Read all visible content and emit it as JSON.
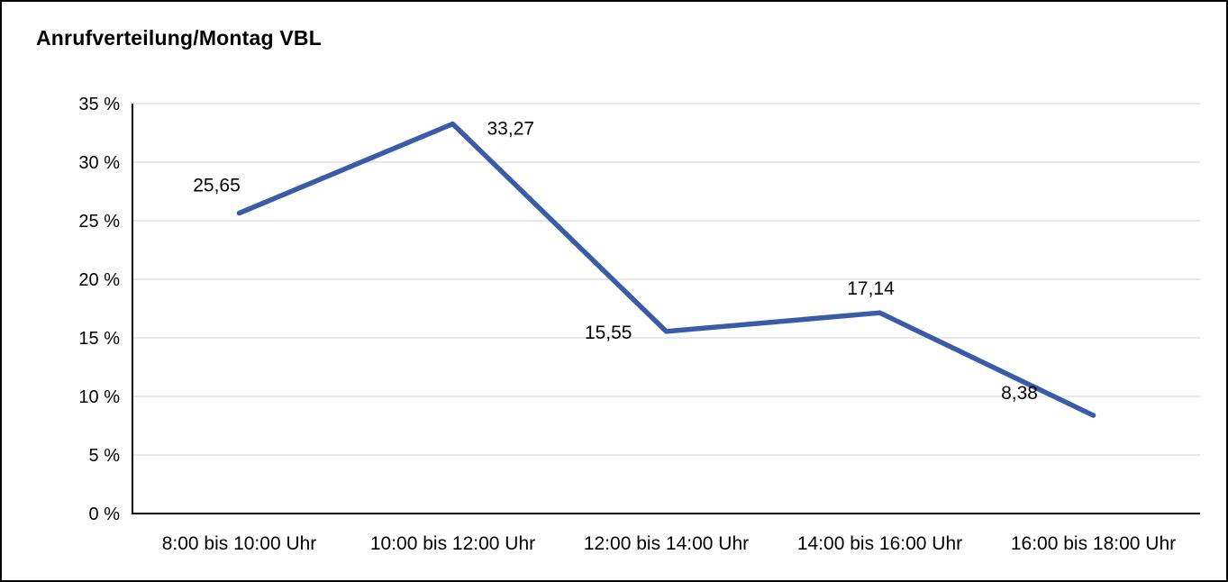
{
  "chart_data": {
    "type": "line",
    "title": "Anrufverteilung/Montag VBL",
    "categories": [
      "8:00 bis 10:00 Uhr",
      "10:00 bis 12:00 Uhr",
      "12:00 bis 14:00 Uhr",
      "14:00 bis 16:00 Uhr",
      "16:00 bis 18:00 Uhr"
    ],
    "values": [
      25.65,
      33.27,
      15.55,
      17.14,
      8.38
    ],
    "value_labels": [
      "25,65",
      "33,27",
      "15,55",
      "17,14",
      "8,38"
    ],
    "xlabel": "",
    "ylabel": "",
    "ylim": [
      0,
      35
    ],
    "ytick_step": 5,
    "ytick_labels": [
      "0 %",
      "5 %",
      "10 %",
      "15 %",
      "20 %",
      "25 %",
      "30 %",
      "35 %"
    ],
    "grid": true,
    "legend": "none"
  },
  "colors": {
    "line": "#3a5ba5",
    "grid": "#d9d9d9",
    "axis": "#000000",
    "text": "#000000",
    "background": "#ffffff",
    "border": "#000000"
  }
}
